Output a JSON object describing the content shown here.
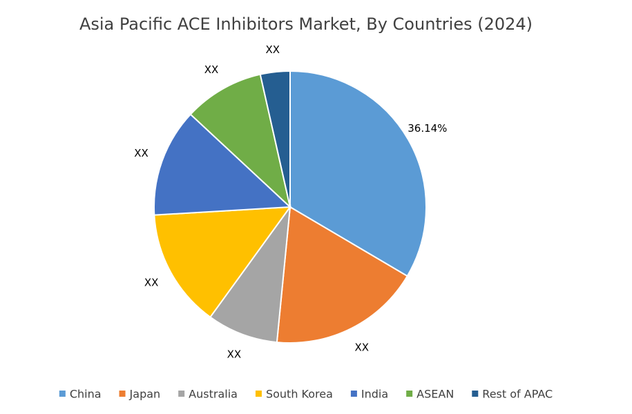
{
  "chart_data": {
    "type": "pie",
    "title": "Asia Pacific ACE Inhibitors Market, By Countries (2024)",
    "categories": [
      "China",
      "Japan",
      "Australia",
      "South Korea",
      "India",
      "ASEAN",
      "Rest of APAC"
    ],
    "values": [
      36.14,
      19.5,
      9.1,
      15.2,
      13.9,
      10.3,
      3.8
    ],
    "value_labels": [
      "36.14%",
      "XX",
      "XX",
      "XX",
      "XX",
      "XX",
      "XX"
    ],
    "colors": [
      "#5b9bd5",
      "#ed7d31",
      "#a5a5a5",
      "#ffc000",
      "#4472c4",
      "#70ad47",
      "#255e91"
    ],
    "legend": "bottom"
  }
}
